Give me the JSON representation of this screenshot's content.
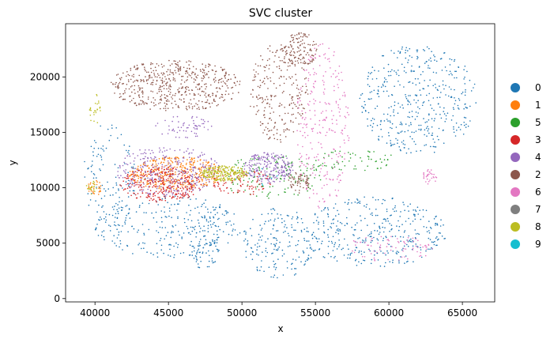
{
  "chart_data": {
    "type": "scatter",
    "title": "SVC cluster",
    "xlabel": "x",
    "ylabel": "y",
    "xlim": [
      38000,
      67200
    ],
    "ylim": [
      -300,
      24800
    ],
    "xticks": [
      40000,
      45000,
      50000,
      55000,
      60000,
      65000
    ],
    "xtick_labels": [
      "40000",
      "45000",
      "50000",
      "55000",
      "60000",
      "65000"
    ],
    "yticks": [
      0,
      5000,
      10000,
      15000,
      20000
    ],
    "ytick_labels": [
      "0",
      "5000",
      "10000",
      "15000",
      "20000"
    ],
    "grid": false,
    "legend_position": "right",
    "series": [
      {
        "name": "0",
        "color": "#1f77b4",
        "regions": [
          {
            "cx": 62000,
            "cy": 18000,
            "rx": 4000,
            "ry": 5000,
            "n": 420
          },
          {
            "cx": 59000,
            "cy": 6000,
            "rx": 5000,
            "ry": 3200,
            "n": 360
          },
          {
            "cx": 52500,
            "cy": 5000,
            "rx": 2500,
            "ry": 3200,
            "n": 180
          },
          {
            "cx": 45000,
            "cy": 6500,
            "rx": 5000,
            "ry": 2800,
            "n": 260
          },
          {
            "cx": 41000,
            "cy": 11000,
            "rx": 1800,
            "ry": 5000,
            "n": 120
          },
          {
            "cx": 47500,
            "cy": 5000,
            "rx": 1000,
            "ry": 2500,
            "n": 80
          }
        ]
      },
      {
        "name": "1",
        "color": "#ff7f0e",
        "regions": [
          {
            "cx": 45500,
            "cy": 11300,
            "rx": 3200,
            "ry": 1500,
            "n": 380
          },
          {
            "cx": 40000,
            "cy": 10000,
            "rx": 500,
            "ry": 700,
            "n": 30
          }
        ]
      },
      {
        "name": "5",
        "color": "#2ca02c",
        "regions": [
          {
            "cx": 52000,
            "cy": 11000,
            "rx": 3500,
            "ry": 2000,
            "n": 140
          },
          {
            "cx": 57500,
            "cy": 12500,
            "rx": 3000,
            "ry": 1000,
            "n": 60
          }
        ]
      },
      {
        "name": "3",
        "color": "#d62728",
        "regions": [
          {
            "cx": 44500,
            "cy": 10300,
            "rx": 2800,
            "ry": 1600,
            "n": 320
          },
          {
            "cx": 50000,
            "cy": 10500,
            "rx": 2000,
            "ry": 1200,
            "n": 90
          }
        ]
      },
      {
        "name": "4",
        "color": "#9467bd",
        "regions": [
          {
            "cx": 45000,
            "cy": 11500,
            "rx": 3500,
            "ry": 2300,
            "n": 300
          },
          {
            "cx": 51800,
            "cy": 11800,
            "rx": 1700,
            "ry": 1400,
            "n": 220
          },
          {
            "cx": 46000,
            "cy": 15500,
            "rx": 2000,
            "ry": 1000,
            "n": 60
          }
        ]
      },
      {
        "name": "2",
        "color": "#8c564b",
        "regions": [
          {
            "cx": 45500,
            "cy": 19200,
            "rx": 4500,
            "ry": 2300,
            "n": 520
          },
          {
            "cx": 52500,
            "cy": 18500,
            "rx": 2000,
            "ry": 4500,
            "n": 240
          },
          {
            "cx": 54000,
            "cy": 22500,
            "rx": 1200,
            "ry": 1500,
            "n": 120
          },
          {
            "cx": 53800,
            "cy": 10500,
            "rx": 800,
            "ry": 1000,
            "n": 60
          }
        ]
      },
      {
        "name": "6",
        "color": "#e377c2",
        "regions": [
          {
            "cx": 55500,
            "cy": 15500,
            "rx": 1800,
            "ry": 7500,
            "n": 260
          },
          {
            "cx": 60000,
            "cy": 4500,
            "rx": 3000,
            "ry": 1200,
            "n": 80
          },
          {
            "cx": 62800,
            "cy": 11000,
            "rx": 500,
            "ry": 700,
            "n": 30
          }
        ]
      },
      {
        "name": "7",
        "color": "#7f7f7f",
        "regions": [
          {
            "cx": 45000,
            "cy": 11000,
            "rx": 2000,
            "ry": 1000,
            "n": 10
          }
        ]
      },
      {
        "name": "8",
        "color": "#bcbd22",
        "regions": [
          {
            "cx": 48800,
            "cy": 11300,
            "rx": 1600,
            "ry": 700,
            "n": 230
          },
          {
            "cx": 40000,
            "cy": 17000,
            "rx": 400,
            "ry": 1500,
            "n": 25
          },
          {
            "cx": 39800,
            "cy": 10000,
            "rx": 400,
            "ry": 600,
            "n": 20
          }
        ]
      },
      {
        "name": "9",
        "color": "#17becf",
        "regions": [
          {
            "cx": 51000,
            "cy": 11000,
            "rx": 1500,
            "ry": 800,
            "n": 8
          }
        ]
      }
    ]
  }
}
